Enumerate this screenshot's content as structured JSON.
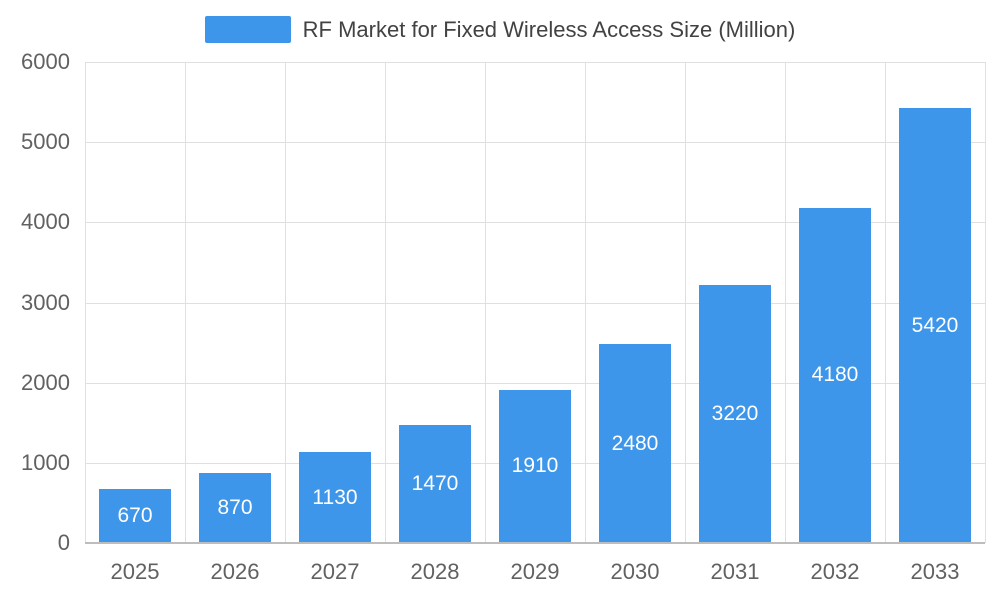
{
  "legend": {
    "label": "RF Market for Fixed Wireless Access Size (Million)"
  },
  "chart_data": {
    "type": "bar",
    "title": "RF Market for Fixed Wireless Access Size (Million)",
    "series_name": "RF Market for Fixed Wireless Access Size (Million)",
    "categories": [
      "2025",
      "2026",
      "2027",
      "2028",
      "2029",
      "2030",
      "2031",
      "2032",
      "2033"
    ],
    "values": [
      670,
      870,
      1130,
      1470,
      1910,
      2480,
      3220,
      4180,
      5420
    ],
    "data_labels": [
      "670",
      "870",
      "1130",
      "1470",
      "1910",
      "2480",
      "3220",
      "4180",
      "5420"
    ],
    "xlabel": "",
    "ylabel": "",
    "ylim": [
      0,
      6000
    ],
    "yticks": [
      0,
      1000,
      2000,
      3000,
      4000,
      5000,
      6000
    ],
    "grid": true,
    "legend_position": "top",
    "bar_color": "#3D96EA",
    "bar_label_color": "#FFFFFF",
    "axis_label_color": "#616161",
    "gridline_color": "#E0E0E0"
  }
}
